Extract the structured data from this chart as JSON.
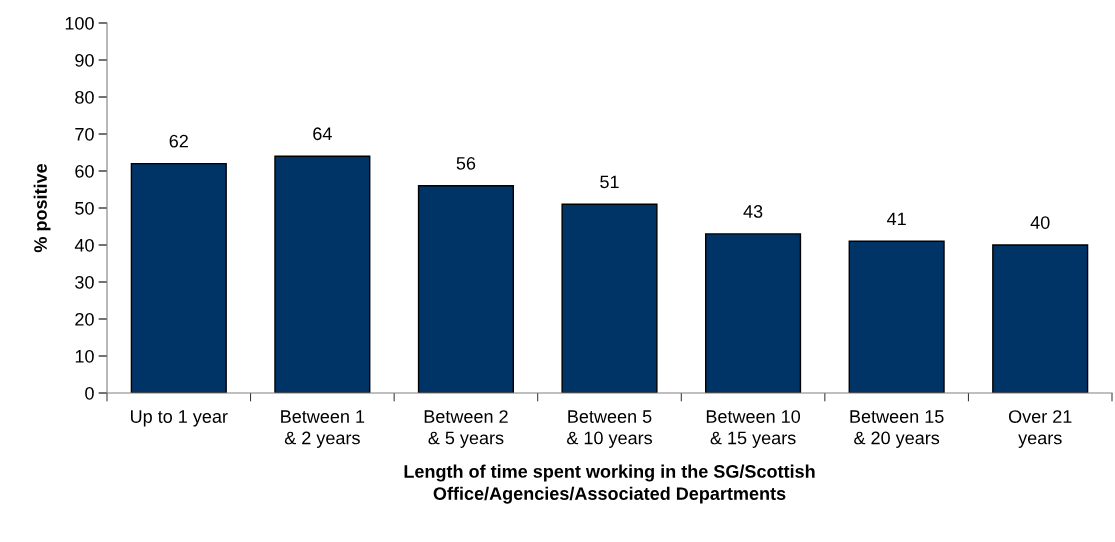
{
  "chart_data": {
    "type": "bar",
    "categories": [
      "Up to 1 year",
      "Between 1\n& 2 years",
      "Between 2\n& 5 years",
      "Between 5\n& 10 years",
      "Between 10\n& 15 years",
      "Between 15\n& 20 years",
      "Over 21\nyears"
    ],
    "values": [
      62,
      64,
      56,
      51,
      43,
      41,
      40
    ],
    "color": "#003366",
    "data_labels": true,
    "ylabel": "% positive",
    "xlabel": "Length of time spent working in the SG/Scottish\nOffice/Agencies/Associated Departments",
    "ylim": [
      0,
      100
    ],
    "yticks": [
      0,
      10,
      20,
      30,
      40,
      50,
      60,
      70,
      80,
      90,
      100
    ]
  }
}
